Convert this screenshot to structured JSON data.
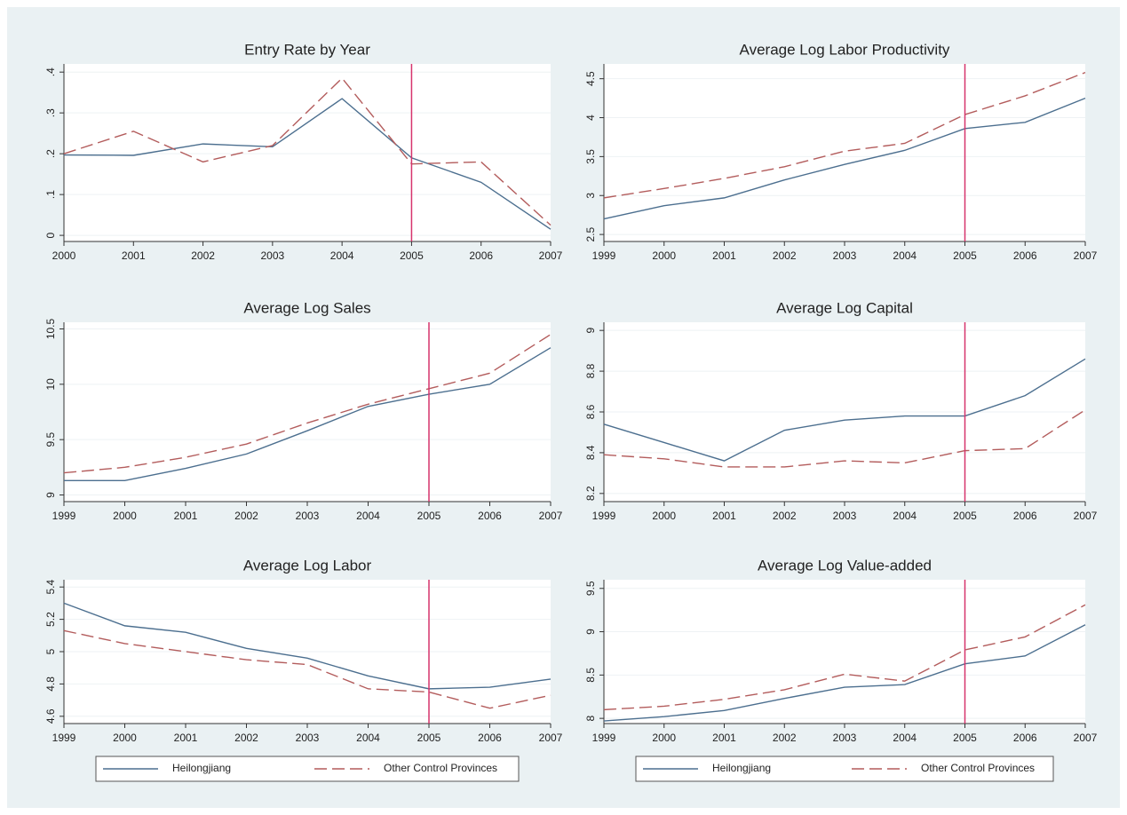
{
  "chart_data": [
    {
      "type": "line",
      "title": "Entry Rate by Year",
      "x": [
        2000,
        2001,
        2002,
        2003,
        2004,
        2005,
        2006,
        2007
      ],
      "series": [
        {
          "color": "#4c6f8f",
          "dash": false,
          "values": [
            0.197,
            0.196,
            0.224,
            0.217,
            0.335,
            0.19,
            0.13,
            0.015
          ]
        },
        {
          "color": "#b35c5c",
          "dash": true,
          "values": [
            0.2,
            0.255,
            0.18,
            0.22,
            0.385,
            0.175,
            0.18,
            0.025
          ]
        }
      ],
      "xlim": [
        2000,
        2007
      ],
      "xticks": [
        2000,
        2001,
        2002,
        2003,
        2004,
        2005,
        2006,
        2007
      ],
      "ylim": [
        -0.015,
        0.42
      ],
      "yticks": [
        0,
        {
          "value": 0.1,
          "label": ".1"
        },
        {
          "value": 0.2,
          "label": ".2"
        },
        {
          "value": 0.3,
          "label": ".3"
        },
        {
          "value": 0.4,
          "label": ".4"
        }
      ],
      "grid": true,
      "vline": 2005,
      "vline_color": "#d6336c"
    },
    {
      "type": "line",
      "title": "Average Log Labor Productivity",
      "x": [
        1999,
        2000,
        2001,
        2002,
        2003,
        2004,
        2005,
        2006,
        2007
      ],
      "series": [
        {
          "color": "#4c6f8f",
          "dash": false,
          "values": [
            2.7,
            2.87,
            2.97,
            3.2,
            3.4,
            3.58,
            3.86,
            3.94,
            4.25
          ]
        },
        {
          "color": "#b35c5c",
          "dash": true,
          "values": [
            2.97,
            3.09,
            3.22,
            3.37,
            3.57,
            3.67,
            4.04,
            4.28,
            4.58
          ]
        }
      ],
      "xlim": [
        1999,
        2007
      ],
      "xticks": [
        1999,
        2000,
        2001,
        2002,
        2003,
        2004,
        2005,
        2006,
        2007
      ],
      "ylim": [
        2.41,
        4.69
      ],
      "yticks": [
        2.5,
        3,
        3.5,
        4,
        4.5
      ],
      "grid": true,
      "vline": 2005,
      "vline_color": "#d6336c"
    },
    {
      "type": "line",
      "title": "Average Log Sales",
      "x": [
        1999,
        2000,
        2001,
        2002,
        2003,
        2004,
        2005,
        2006,
        2007
      ],
      "series": [
        {
          "color": "#4c6f8f",
          "dash": false,
          "values": [
            9.13,
            9.13,
            9.24,
            9.37,
            9.58,
            9.8,
            9.91,
            10.0,
            10.33
          ]
        },
        {
          "color": "#b35c5c",
          "dash": true,
          "values": [
            9.2,
            9.25,
            9.34,
            9.46,
            9.65,
            9.82,
            9.96,
            10.1,
            10.45
          ]
        }
      ],
      "xlim": [
        1999,
        2007
      ],
      "xticks": [
        1999,
        2000,
        2001,
        2002,
        2003,
        2004,
        2005,
        2006,
        2007
      ],
      "ylim": [
        8.94,
        10.56
      ],
      "yticks": [
        9,
        9.5,
        10,
        10.5
      ],
      "grid": true,
      "vline": 2005,
      "vline_color": "#d6336c"
    },
    {
      "type": "line",
      "title": "Average Log Capital",
      "x": [
        1999,
        2000,
        2001,
        2002,
        2003,
        2004,
        2005,
        2006,
        2007
      ],
      "series": [
        {
          "color": "#4c6f8f",
          "dash": false,
          "values": [
            8.54,
            8.45,
            8.36,
            8.51,
            8.56,
            8.58,
            8.58,
            8.68,
            8.86
          ]
        },
        {
          "color": "#b35c5c",
          "dash": true,
          "values": [
            8.39,
            8.37,
            8.33,
            8.33,
            8.36,
            8.35,
            8.41,
            8.42,
            8.61
          ]
        }
      ],
      "xlim": [
        1999,
        2007
      ],
      "xticks": [
        1999,
        2000,
        2001,
        2002,
        2003,
        2004,
        2005,
        2006,
        2007
      ],
      "ylim": [
        8.16,
        9.04
      ],
      "yticks": [
        8.2,
        8.4,
        8.6,
        8.8,
        9
      ],
      "grid": true,
      "vline": 2005,
      "vline_color": "#d6336c"
    },
    {
      "type": "line",
      "title": "Average Log Labor",
      "x": [
        1999,
        2000,
        2001,
        2002,
        2003,
        2004,
        2005,
        2006,
        2007
      ],
      "series": [
        {
          "name": "Heilongjiang",
          "color": "#4c6f8f",
          "dash": false,
          "values": [
            5.3,
            5.16,
            5.12,
            5.02,
            4.96,
            4.85,
            4.77,
            4.78,
            4.83
          ]
        },
        {
          "name": "Other Control Provinces",
          "color": "#b35c5c",
          "dash": true,
          "values": [
            5.13,
            5.05,
            5.0,
            4.95,
            4.92,
            4.77,
            4.75,
            4.65,
            4.73
          ]
        }
      ],
      "xlim": [
        1999,
        2007
      ],
      "xticks": [
        1999,
        2000,
        2001,
        2002,
        2003,
        2004,
        2005,
        2006,
        2007
      ],
      "ylim": [
        4.555,
        5.445
      ],
      "yticks": [
        4.6,
        4.8,
        5,
        5.2,
        5.4
      ],
      "grid": true,
      "vline": 2005,
      "vline_color": "#d6336c",
      "legend": "bottom"
    },
    {
      "type": "line",
      "title": "Average Log Value-added",
      "x": [
        1999,
        2000,
        2001,
        2002,
        2003,
        2004,
        2005,
        2006,
        2007
      ],
      "series": [
        {
          "name": "Heilongjiang",
          "color": "#4c6f8f",
          "dash": false,
          "values": [
            7.97,
            8.02,
            8.09,
            8.23,
            8.36,
            8.39,
            8.63,
            8.72,
            9.08
          ]
        },
        {
          "name": "Other Control Provinces",
          "color": "#b35c5c",
          "dash": true,
          "values": [
            8.1,
            8.14,
            8.22,
            8.33,
            8.51,
            8.43,
            8.79,
            8.94,
            9.31
          ]
        }
      ],
      "xlim": [
        1999,
        2007
      ],
      "xticks": [
        1999,
        2000,
        2001,
        2002,
        2003,
        2004,
        2005,
        2006,
        2007
      ],
      "ylim": [
        7.94,
        9.6
      ],
      "yticks": [
        8,
        8.5,
        9,
        9.5
      ],
      "grid": true,
      "vline": 2005,
      "vline_color": "#d6336c",
      "legend": "bottom"
    }
  ]
}
